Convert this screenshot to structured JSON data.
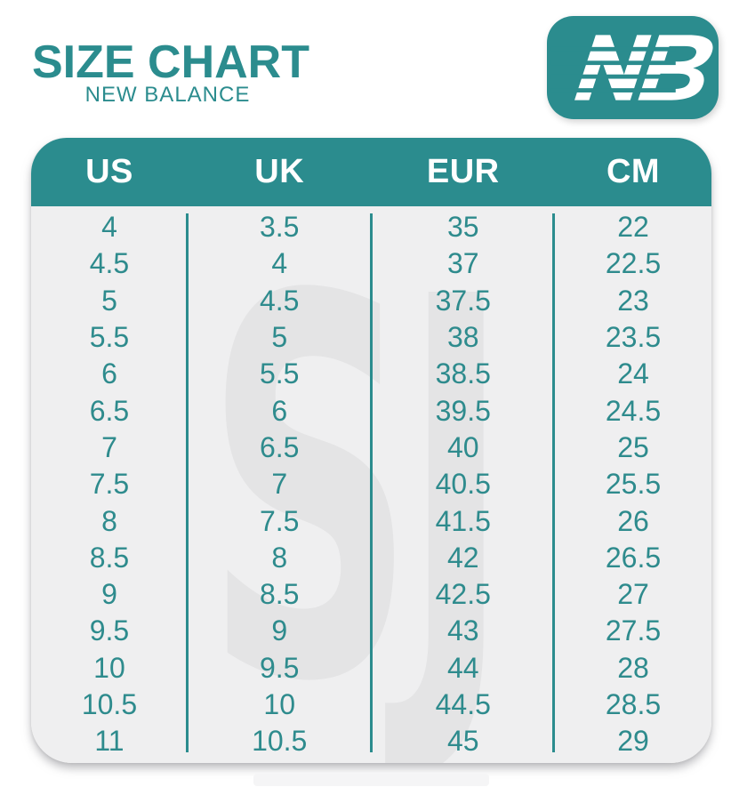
{
  "page": {
    "title": "SIZE CHART",
    "subtitle": "NEW BALANCE"
  },
  "logo": {
    "brand": "New Balance",
    "monogram": "NB"
  },
  "chart_data": {
    "type": "table",
    "title": "SIZE CHART",
    "subtitle": "NEW BALANCE",
    "columns": [
      "US",
      "UK",
      "EUR",
      "CM"
    ],
    "rows": [
      [
        "4",
        "3.5",
        "35",
        "22"
      ],
      [
        "4.5",
        "4",
        "37",
        "22.5"
      ],
      [
        "5",
        "4.5",
        "37.5",
        "23"
      ],
      [
        "5.5",
        "5",
        "38",
        "23.5"
      ],
      [
        "6",
        "5.5",
        "38.5",
        "24"
      ],
      [
        "6.5",
        "6",
        "39.5",
        "24.5"
      ],
      [
        "7",
        "6.5",
        "40",
        "25"
      ],
      [
        "7.5",
        "7",
        "40.5",
        "25.5"
      ],
      [
        "8",
        "7.5",
        "41.5",
        "26"
      ],
      [
        "8.5",
        "8",
        "42",
        "26.5"
      ],
      [
        "9",
        "8.5",
        "42.5",
        "27"
      ],
      [
        "9.5",
        "9",
        "43",
        "27.5"
      ],
      [
        "10",
        "9.5",
        "44",
        "28"
      ],
      [
        "10.5",
        "10",
        "44.5",
        "28.5"
      ],
      [
        "11",
        "10.5",
        "45",
        "29"
      ]
    ]
  },
  "watermark": "SJ",
  "colors": {
    "teal": "#2b8c8e",
    "cell_text": "#2e8b8d",
    "header_text": "#ffffff",
    "body_bg": "#efeff0",
    "watermark_gray": "#e4e4e5",
    "page_bg": "#ffffff"
  }
}
